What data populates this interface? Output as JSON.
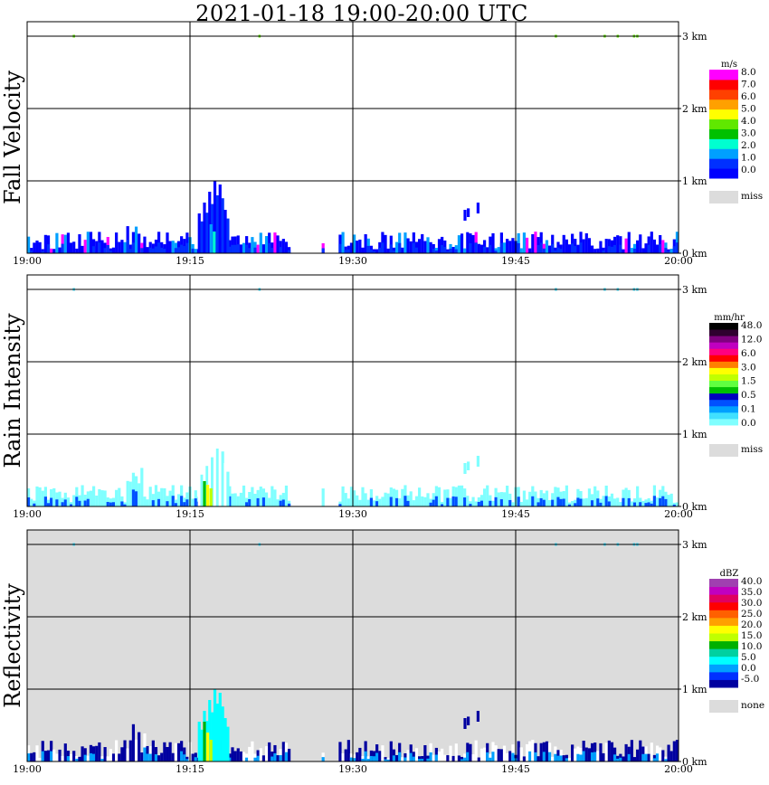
{
  "title": "2021-01-18   19:00-20:00 UTC",
  "chart_data": [
    {
      "type": "heatmap",
      "title": "Fall Velocity",
      "x_ticks": [
        "19:00",
        "19:15",
        "19:30",
        "19:45",
        "20:00"
      ],
      "y_ticks": [
        "0 km",
        "1 km",
        "2 km",
        "3 km"
      ],
      "ylim_km": [
        0,
        3.2
      ],
      "colorbar": {
        "unit": "m/s",
        "colors": [
          "#0000ff",
          "#0030ff",
          "#00a0ff",
          "#00ffd0",
          "#00c000",
          "#60e800",
          "#ffff00",
          "#ffa000",
          "#ff4000",
          "#ff0000",
          "#ff00ff"
        ],
        "labels": [
          "0.0",
          "1.0",
          "2.0",
          "3.0",
          "4.0",
          "5.0",
          "6.0",
          "7.0",
          "8.0"
        ],
        "miss_label": "miss",
        "miss_color": "#dcdcdc"
      }
    },
    {
      "type": "heatmap",
      "title": "Rain Intensity",
      "x_ticks": [
        "19:00",
        "19:15",
        "19:30",
        "19:45",
        "20:00"
      ],
      "y_ticks": [
        "0 km",
        "1 km",
        "2 km",
        "3 km"
      ],
      "ylim_km": [
        0,
        3.2
      ],
      "colorbar": {
        "unit": "mm/hr",
        "colors": [
          "#ffffff",
          "#80ffff",
          "#40e0ff",
          "#00a0ff",
          "#0050ff",
          "#0000c0",
          "#00c000",
          "#60ff40",
          "#c0ff00",
          "#ffff00",
          "#ff8000",
          "#ff0000",
          "#ff0080",
          "#c000c0",
          "#800080",
          "#300030",
          "#000000"
        ],
        "labels": [
          "0.0",
          "0.1",
          "0.5",
          "1.5",
          "3.0",
          "6.0",
          "12.0",
          "48.0"
        ],
        "miss_label": "miss",
        "miss_color": "#dcdcdc"
      }
    },
    {
      "type": "heatmap",
      "title": "Reflectivity",
      "x_ticks": [
        "19:00",
        "19:15",
        "19:30",
        "19:45",
        "20:00"
      ],
      "y_ticks": [
        "0 km",
        "1 km",
        "2 km",
        "3 km"
      ],
      "ylim_km": [
        0,
        3.2
      ],
      "background": "#dcdcdc",
      "colorbar": {
        "unit": "dBZ",
        "colors": [
          "#0000a0",
          "#0030ff",
          "#00a0ff",
          "#00ffff",
          "#00d0a0",
          "#00b000",
          "#c0ff00",
          "#ffff00",
          "#ffa000",
          "#ff6000",
          "#ff0000",
          "#e00060",
          "#c000c0",
          "#a040b0"
        ],
        "labels": [
          "-5.0",
          "0.0",
          "5.0",
          "10.0",
          "15.0",
          "20.0",
          "25.0",
          "30.0",
          "35.0",
          "40.0"
        ],
        "miss_label": "none",
        "miss_color": "#dcdcdc"
      }
    }
  ]
}
